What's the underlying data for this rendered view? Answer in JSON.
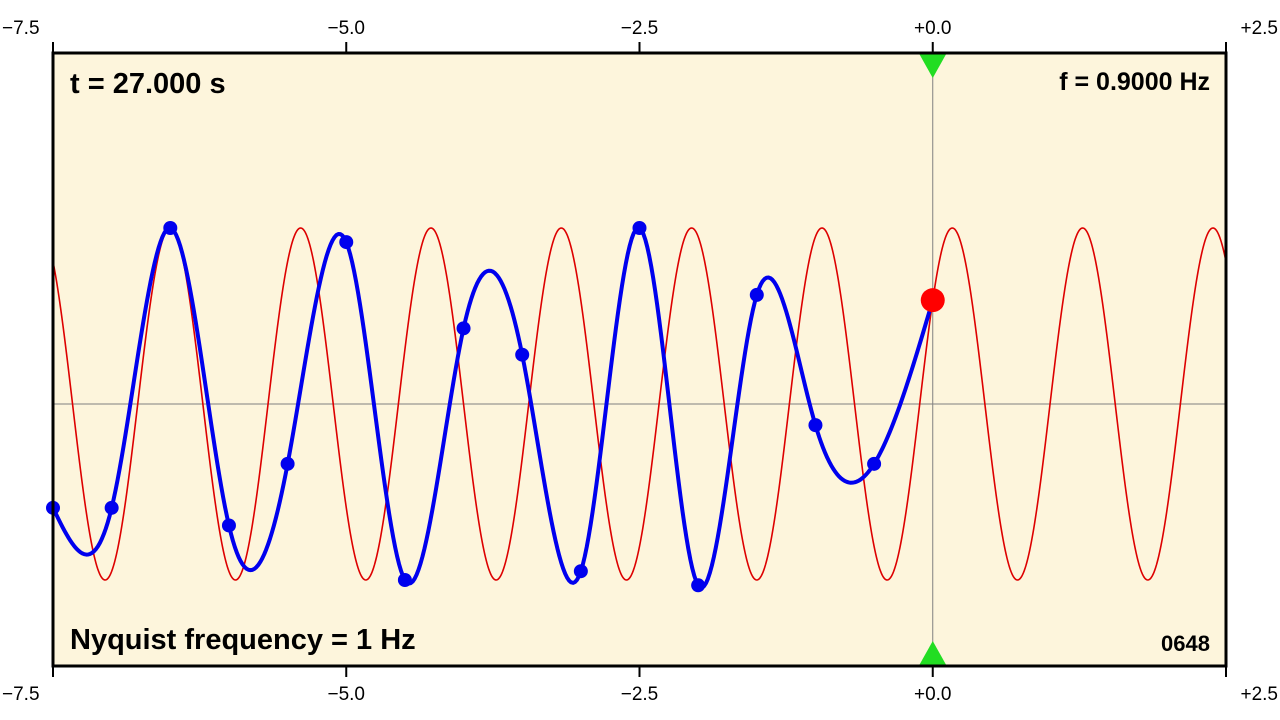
{
  "annotations": {
    "time": "t = 27.000 s",
    "frequency": "f = 0.9000 Hz",
    "nyquist": "Nyquist frequency = 1 Hz",
    "frame": "0648"
  },
  "chart_data": {
    "type": "line",
    "title": "",
    "xlabel": "",
    "ylabel": "",
    "xlim": [
      -7.5,
      2.5
    ],
    "ylim": [
      -1.2,
      1.2
    ],
    "x_ticks": [
      -7.5,
      -5.0,
      -2.5,
      0.0,
      2.5
    ],
    "x_tick_labels": [
      "−7.5",
      "−5.0",
      "−2.5",
      "+0.0",
      "+2.5"
    ],
    "ticks_on": [
      "top",
      "bottom"
    ],
    "grid": false,
    "reference_lines": {
      "x": 0.0,
      "y": 0.0
    },
    "markers": {
      "x": 0.0,
      "shape": "triangle",
      "color": "#22dd22"
    },
    "colors": {
      "background": "#fdf5dc",
      "sine": "#dd0000",
      "reconstruction": "#0000ee",
      "samples": "#0000ee",
      "current": "#ff0000",
      "axes": "#000000",
      "reference": "#808080"
    },
    "series": [
      {
        "kind": "sine",
        "frequency": 0.9,
        "amplitude": 1.0,
        "value_at_x0": 0.588
      },
      {
        "kind": "samples",
        "x": [
          -7.5,
          -7.0,
          -6.5,
          -6.0,
          -5.5,
          -5.0,
          -4.5,
          -4.0,
          -3.5,
          -3.0,
          -2.5,
          -2.0,
          -1.5,
          -1.0,
          -0.5
        ],
        "y": [
          -0.59,
          -0.59,
          1.0,
          -0.69,
          -0.34,
          0.92,
          -1.0,
          0.43,
          0.28,
          -0.95,
          1.0,
          -1.03,
          0.62,
          -0.12,
          -0.34
        ]
      },
      {
        "kind": "current_sample",
        "x": 0.0,
        "y": 0.59
      }
    ]
  }
}
